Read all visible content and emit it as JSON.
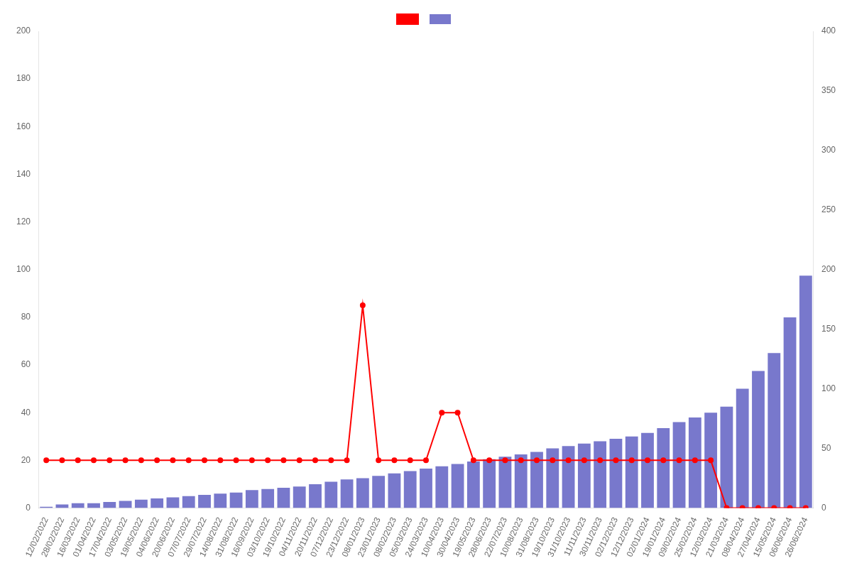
{
  "chart_data": {
    "type": "bar",
    "categories": [
      "12/02/2022",
      "28/02/2022",
      "16/03/2022",
      "01/04/2022",
      "17/04/2022",
      "03/05/2022",
      "19/05/2022",
      "04/06/2022",
      "20/06/2022",
      "07/07/2022",
      "29/07/2022",
      "14/08/2022",
      "31/08/2022",
      "16/09/2022",
      "03/10/2022",
      "19/10/2022",
      "04/11/2022",
      "20/11/2022",
      "07/12/2022",
      "23/12/2022",
      "08/01/2023",
      "23/01/2023",
      "08/02/2023",
      "05/03/2023",
      "24/03/2023",
      "10/04/2023",
      "30/04/2023",
      "19/05/2023",
      "28/06/2023",
      "22/07/2023",
      "10/08/2023",
      "31/08/2023",
      "19/10/2023",
      "31/10/2023",
      "11/11/2023",
      "30/11/2023",
      "02/12/2023",
      "12/12/2023",
      "02/01/2024",
      "19/01/2024",
      "09/02/2024",
      "25/02/2024",
      "12/03/2024",
      "21/03/2024",
      "08/04/2024",
      "27/04/2024",
      "15/05/2024",
      "06/06/2024",
      "26/06/2024"
    ],
    "series": [
      {
        "type": "line",
        "color": "#ff0000",
        "marker": "circle",
        "line_style": "solid",
        "values": [
          20,
          20,
          20,
          20,
          20,
          20,
          20,
          20,
          20,
          20,
          20,
          20,
          20,
          20,
          20,
          20,
          20,
          20,
          20,
          20,
          85,
          20,
          20,
          20,
          20,
          40,
          40,
          20,
          20,
          20,
          20,
          20,
          20,
          20,
          20,
          20,
          20,
          20,
          20,
          20,
          20,
          20,
          20,
          0,
          0,
          0,
          0,
          0,
          0
        ]
      },
      {
        "type": "bar",
        "color": "#7878cc",
        "axis": "y2",
        "values": [
          1,
          3,
          4,
          4,
          5,
          6,
          7,
          8,
          9,
          10,
          11,
          12,
          13,
          15,
          16,
          17,
          18,
          20,
          22,
          24,
          25,
          27,
          29,
          31,
          33,
          35,
          37,
          39,
          41,
          43,
          45,
          47,
          50,
          52,
          54,
          56,
          58,
          60,
          63,
          67,
          72,
          76,
          80,
          85,
          100,
          115,
          130,
          160,
          195
        ]
      }
    ],
    "ylim": [
      0,
      200
    ],
    "yticks": [
      0,
      20,
      40,
      60,
      80,
      100,
      120,
      140,
      160,
      180,
      200
    ],
    "y2lim": [
      0,
      400
    ],
    "y2ticks": [
      0,
      50,
      100,
      150,
      200,
      250,
      300,
      350,
      400
    ],
    "grid": false,
    "legend": "top"
  }
}
